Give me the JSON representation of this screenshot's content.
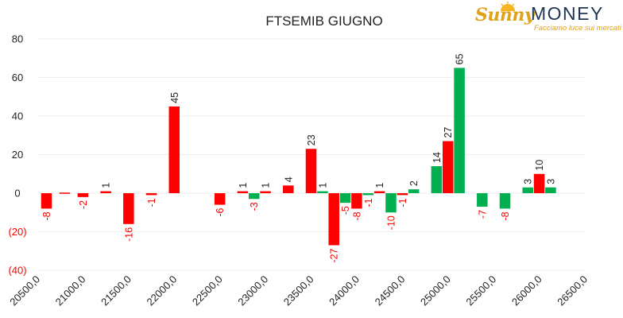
{
  "logo": {
    "script_text": "Sunny",
    "main_text": "MONEY",
    "tagline": "Facciamo luce sui mercati"
  },
  "chart_data": {
    "type": "bar",
    "title": "FTSEMIB GIUGNO",
    "xlabel": "",
    "ylabel": "",
    "ylim": [
      -40,
      80
    ],
    "y_ticks": [
      {
        "value": 80,
        "label": "80"
      },
      {
        "value": 60,
        "label": "60"
      },
      {
        "value": 40,
        "label": "40"
      },
      {
        "value": 20,
        "label": "20"
      },
      {
        "value": 0,
        "label": "0"
      },
      {
        "value": -20,
        "label": "(20)"
      },
      {
        "value": -40,
        "label": "(40)"
      }
    ],
    "x_ticks": [
      {
        "value": 20500,
        "label": "20500,0"
      },
      {
        "value": 21000,
        "label": "21000,0"
      },
      {
        "value": 21500,
        "label": "21500,0"
      },
      {
        "value": 22000,
        "label": "22000,0"
      },
      {
        "value": 22500,
        "label": "22500,0"
      },
      {
        "value": 23000,
        "label": "23000,0"
      },
      {
        "value": 23500,
        "label": "23500,0"
      },
      {
        "value": 24000,
        "label": "24000,0"
      },
      {
        "value": 24500,
        "label": "24500,0"
      },
      {
        "value": 25000,
        "label": "25000,0"
      },
      {
        "value": 25500,
        "label": "25500,0"
      },
      {
        "value": 26000,
        "label": "26000,0"
      },
      {
        "value": 26500,
        "label": "26500,0"
      }
    ],
    "xlim": [
      20500,
      26500
    ],
    "grid": true,
    "colors": {
      "red": "#ff0000",
      "green": "#00b050",
      "negative_tick": "#ff0000",
      "positive_tick": "#222222",
      "grid": "#eeeeee"
    },
    "bars": [
      {
        "strike": 20600,
        "value": -8,
        "color": "red",
        "label": "-8"
      },
      {
        "strike": 20800,
        "value": 0,
        "color": "red",
        "label": ""
      },
      {
        "strike": 21000,
        "value": -2,
        "color": "red",
        "label": "-2"
      },
      {
        "strike": 21250,
        "value": 1,
        "color": "red",
        "label": "1"
      },
      {
        "strike": 21500,
        "value": -16,
        "color": "red",
        "label": "-16"
      },
      {
        "strike": 21750,
        "value": -1,
        "color": "red",
        "label": "-1"
      },
      {
        "strike": 22000,
        "value": 45,
        "color": "red",
        "label": "45"
      },
      {
        "strike": 22500,
        "value": -6,
        "color": "red",
        "label": "-6"
      },
      {
        "strike": 22750,
        "value": 1,
        "color": "red",
        "label": "1"
      },
      {
        "strike": 22875,
        "value": -3,
        "color": "green",
        "label": "-3"
      },
      {
        "strike": 23000,
        "value": 1,
        "color": "red",
        "label": "1"
      },
      {
        "strike": 23250,
        "value": 4,
        "color": "red",
        "label": "4"
      },
      {
        "strike": 23500,
        "value": 23,
        "color": "red",
        "label": "23"
      },
      {
        "strike": 23625,
        "value": 1,
        "color": "green",
        "label": "1"
      },
      {
        "strike": 23750,
        "value": -27,
        "color": "red",
        "label": "-27"
      },
      {
        "strike": 23875,
        "value": -5,
        "color": "green",
        "label": "-5"
      },
      {
        "strike": 24000,
        "value": -8,
        "color": "red",
        "label": "-8"
      },
      {
        "strike": 24125,
        "value": -1,
        "color": "green",
        "label": "-1"
      },
      {
        "strike": 24250,
        "value": 1,
        "color": "red",
        "label": "1"
      },
      {
        "strike": 24375,
        "value": -10,
        "color": "green",
        "label": "-10"
      },
      {
        "strike": 24500,
        "value": -1,
        "color": "red",
        "label": "-1"
      },
      {
        "strike": 24625,
        "value": 2,
        "color": "green",
        "label": "2"
      },
      {
        "strike": 24875,
        "value": 14,
        "color": "green",
        "label": "14"
      },
      {
        "strike": 25000,
        "value": 27,
        "color": "red",
        "label": "27"
      },
      {
        "strike": 25125,
        "value": 65,
        "color": "green",
        "label": "65"
      },
      {
        "strike": 25375,
        "value": -7,
        "color": "green",
        "label": "-7"
      },
      {
        "strike": 25625,
        "value": -8,
        "color": "green",
        "label": "-8"
      },
      {
        "strike": 25875,
        "value": 3,
        "color": "green",
        "label": "3"
      },
      {
        "strike": 26000,
        "value": 10,
        "color": "red",
        "label": "10"
      },
      {
        "strike": 26125,
        "value": 3,
        "color": "green",
        "label": "3"
      }
    ]
  }
}
